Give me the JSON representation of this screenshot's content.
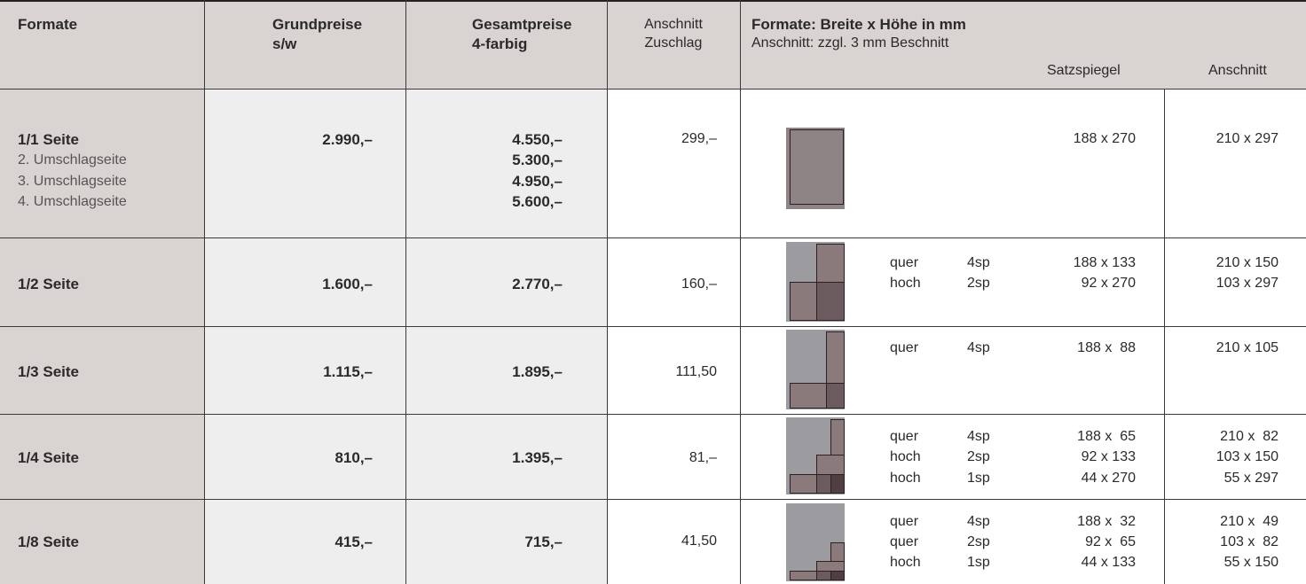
{
  "header": {
    "formate": "Formate",
    "grundpreise_l1": "Grundpreise",
    "grundpreise_l2": "s/w",
    "gesamtpreise_l1": "Gesamtpreise",
    "gesamtpreise_l2": "4-farbig",
    "anschnitt_l1": "Anschnitt",
    "anschnitt_l2": "Zuschlag",
    "format_title": "Formate: Breite x Höhe in mm",
    "format_sub": "Anschnitt: zzgl. 3 mm Beschnitt",
    "satzspiegel": "Satzspiegel",
    "anschnitt_col": "Anschnitt"
  },
  "rows": [
    {
      "name": "1/1 Seite",
      "subs": [
        "2. Umschlagseite",
        "3. Umschlagseite",
        "4. Umschlagseite"
      ],
      "grund": "2.990,–",
      "gesamt": [
        "4.550,–",
        "5.300,–",
        "4.950,–",
        "5.600,–"
      ],
      "zuschlag": "299,–",
      "formats": [
        {
          "orient": "",
          "cols": "",
          "satz": "188 x 270",
          "ansch": "210 x 297"
        }
      ],
      "icon": "full-page-icon"
    },
    {
      "name": "1/2 Seite",
      "subs": [],
      "grund": "1.600,–",
      "gesamt": [
        "2.770,–"
      ],
      "zuschlag": "160,–",
      "formats": [
        {
          "orient": "quer",
          "cols": "4sp",
          "satz": "188 x 133",
          "ansch": "210 x 150"
        },
        {
          "orient": "hoch",
          "cols": "2sp",
          "satz": "92 x 270",
          "ansch": "103 x 297"
        }
      ],
      "icon": "half-page-icon"
    },
    {
      "name": "1/3 Seite",
      "subs": [],
      "grund": "1.115,–",
      "gesamt": [
        "1.895,–"
      ],
      "zuschlag": "111,50",
      "formats": [
        {
          "orient": "quer",
          "cols": "4sp",
          "satz": "188 x  88",
          "ansch": "210 x 105"
        }
      ],
      "icon": "third-page-icon"
    },
    {
      "name": "1/4 Seite",
      "subs": [],
      "grund": "810,–",
      "gesamt": [
        "1.395,–"
      ],
      "zuschlag": "81,–",
      "formats": [
        {
          "orient": "quer",
          "cols": "4sp",
          "satz": "188 x  65",
          "ansch": "210 x  82"
        },
        {
          "orient": "hoch",
          "cols": "2sp",
          "satz": "92 x 133",
          "ansch": "103 x 150"
        },
        {
          "orient": "hoch",
          "cols": "1sp",
          "satz": "44 x 270",
          "ansch": "55 x 297"
        }
      ],
      "icon": "quarter-page-icon"
    },
    {
      "name": "1/8 Seite",
      "subs": [],
      "grund": "415,–",
      "gesamt": [
        "715,–"
      ],
      "zuschlag": "41,50",
      "formats": [
        {
          "orient": "quer",
          "cols": "4sp",
          "satz": "188 x  32",
          "ansch": "210 x  49"
        },
        {
          "orient": "quer",
          "cols": "2sp",
          "satz": "92 x  65",
          "ansch": "103 x  82"
        },
        {
          "orient": "hoch",
          "cols": "1sp",
          "satz": "44 x 133",
          "ansch": "55 x 150"
        }
      ],
      "icon": "eighth-page-icon"
    }
  ]
}
